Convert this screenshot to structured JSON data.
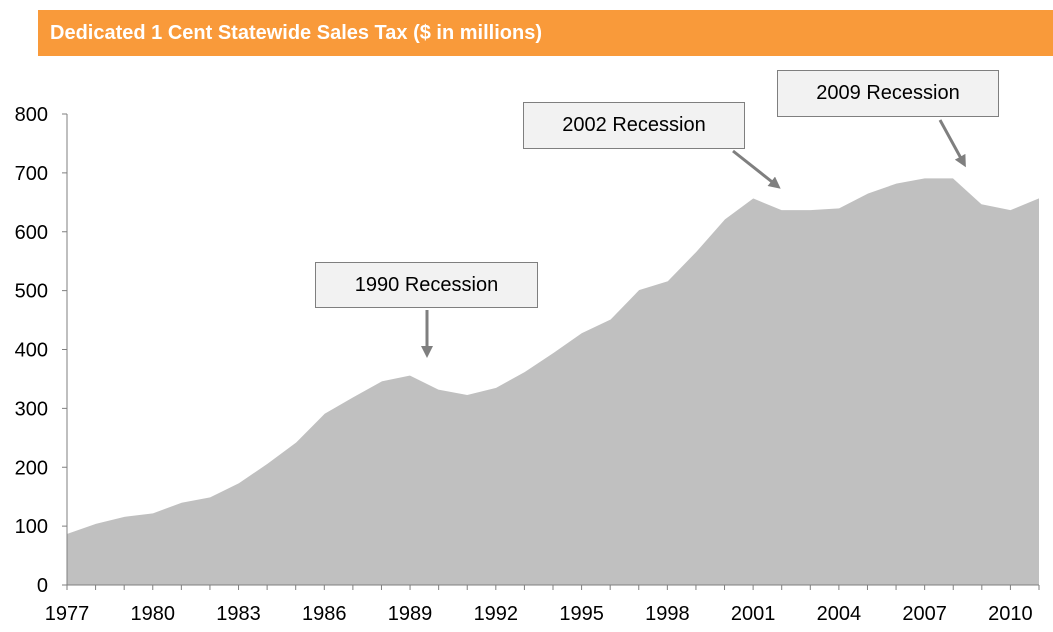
{
  "header": {
    "title": "Dedicated 1 Cent Statewide Sales Tax ($ in millions)"
  },
  "colors": {
    "header_bg": "#f99a3a",
    "area_fill": "#c0c0c0",
    "arrow": "#7f7f7f",
    "callout_bg": "#f2f2f2"
  },
  "chart_data": {
    "type": "area",
    "title": "Dedicated 1 Cent Statewide Sales Tax ($ in millions)",
    "xlabel": "",
    "ylabel": "",
    "ylim": [
      0,
      800
    ],
    "yticks": [
      0,
      100,
      200,
      300,
      400,
      500,
      600,
      700,
      800
    ],
    "xticks": [
      1977,
      1980,
      1983,
      1986,
      1989,
      1992,
      1995,
      1998,
      2001,
      2004,
      2007,
      2010
    ],
    "grid": false,
    "legend": "none",
    "x": [
      1977,
      1978,
      1979,
      1980,
      1981,
      1982,
      1983,
      1984,
      1985,
      1986,
      1987,
      1988,
      1989,
      1990,
      1991,
      1992,
      1993,
      1994,
      1995,
      1996,
      1997,
      1998,
      1999,
      2000,
      2001,
      2002,
      2003,
      2004,
      2005,
      2006,
      2007,
      2008,
      2009,
      2010,
      2011
    ],
    "values": [
      88,
      105,
      117,
      123,
      141,
      150,
      174,
      207,
      243,
      292,
      320,
      347,
      357,
      333,
      324,
      336,
      363,
      395,
      429,
      452,
      502,
      517,
      567,
      622,
      658,
      638,
      638,
      641,
      666,
      683,
      692,
      692,
      648,
      638,
      658
    ],
    "annotations": [
      {
        "text": "1990 Recession",
        "x": 1989.5
      },
      {
        "text": "2002 Recession",
        "x": 2001.6
      },
      {
        "text": "2009 Recession",
        "x": 2008.5
      }
    ]
  }
}
